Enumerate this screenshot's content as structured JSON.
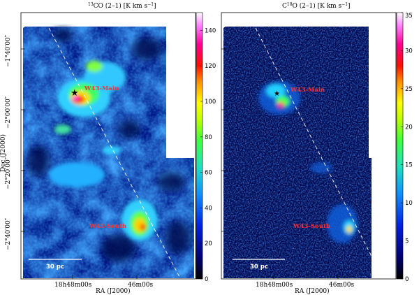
{
  "panels": [
    {
      "title_main": "CO (2–1) [K km s",
      "title_iso": "13",
      "title_sup": "−1",
      "title_end": "]",
      "colorbar_ticks": [
        "0",
        "20",
        "40",
        "60",
        "80",
        "100",
        "120",
        "140"
      ],
      "colorbar_max": 150,
      "labels": {
        "main": "W43-Main",
        "south": "W43-South"
      },
      "scale_bar": "30 pc"
    },
    {
      "title_main": "O (2–1) [K km s",
      "title_prefix": "C",
      "title_iso": "18",
      "title_sup": "−1",
      "title_end": "]",
      "colorbar_ticks": [
        "0",
        "5",
        "10",
        "15",
        "20",
        "25",
        "30",
        "35"
      ],
      "colorbar_max": 35,
      "labels": {
        "main": "W43-Main",
        "south": "W43-South"
      },
      "scale_bar": "30 pc"
    }
  ],
  "axes": {
    "ylabel": "Dec (J2000)",
    "xlabel": "RA (J2000)",
    "dec_ticks": [
      "−1°40′00″",
      "−2°00′00″",
      "−2°20′00″",
      "−2°40′00″"
    ],
    "ra_ticks": [
      "18h48m00s",
      "46m00s"
    ]
  },
  "colors": {
    "background_map": "#000033",
    "label_color": "#ff3030",
    "colormap": [
      "#000000",
      "#000060",
      "#0010d0",
      "#1070ff",
      "#10c0ff",
      "#20e0a0",
      "#40ff40",
      "#c0ff00",
      "#ffff00",
      "#ffa000",
      "#ff2000",
      "#ff00a0",
      "#ff80ff",
      "#ffffff"
    ]
  }
}
